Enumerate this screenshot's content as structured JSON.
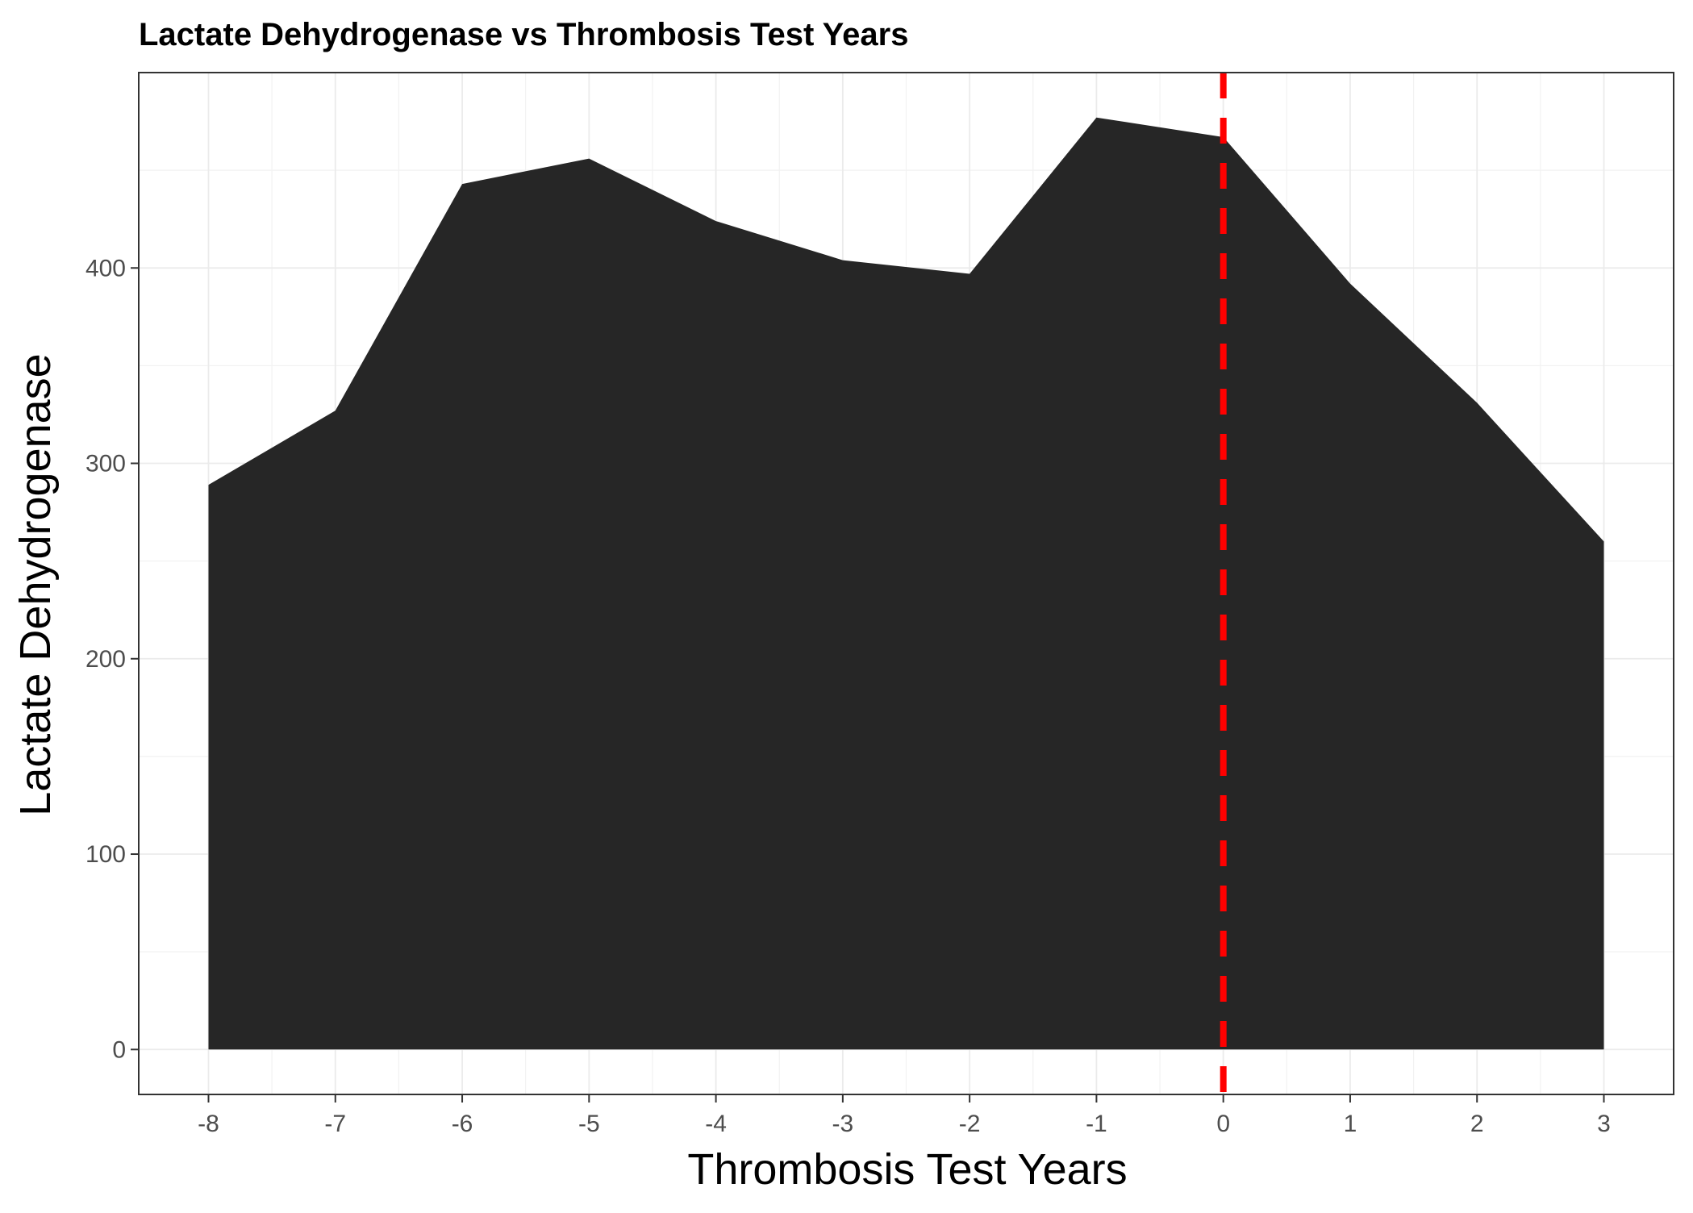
{
  "chart_data": {
    "type": "area",
    "title": "Lactate Dehydrogenase vs Thrombosis Test Years",
    "xlabel": "Thrombosis Test Years",
    "ylabel": "Lactate Dehydrogenase",
    "x": [
      -8,
      -7,
      -6,
      -5,
      -4,
      -3,
      -2,
      -1,
      0,
      1,
      2,
      3
    ],
    "series": [
      {
        "values": [
          289,
          327,
          443,
          456,
          424,
          404,
          397,
          477,
          467,
          392,
          331,
          260
        ]
      }
    ],
    "xlim": [
      -8.55,
      3.55
    ],
    "ylim": [
      -23,
      500
    ],
    "x_ticks": [
      -8,
      -7,
      -6,
      -5,
      -4,
      -3,
      -2,
      -1,
      0,
      1,
      2,
      3
    ],
    "x_tick_labels": [
      "-8",
      "-7",
      "-6",
      "-5",
      "-4",
      "-3",
      "-2",
      "-1",
      "0",
      "1",
      "2",
      "3"
    ],
    "y_ticks": [
      0,
      100,
      200,
      300,
      400
    ],
    "y_tick_labels": [
      "0",
      "100",
      "200",
      "300",
      "400"
    ],
    "grid": true,
    "fill_color": "#262626",
    "reference_line": {
      "x": 0,
      "color": "#ff0000",
      "style": "dashed"
    }
  }
}
